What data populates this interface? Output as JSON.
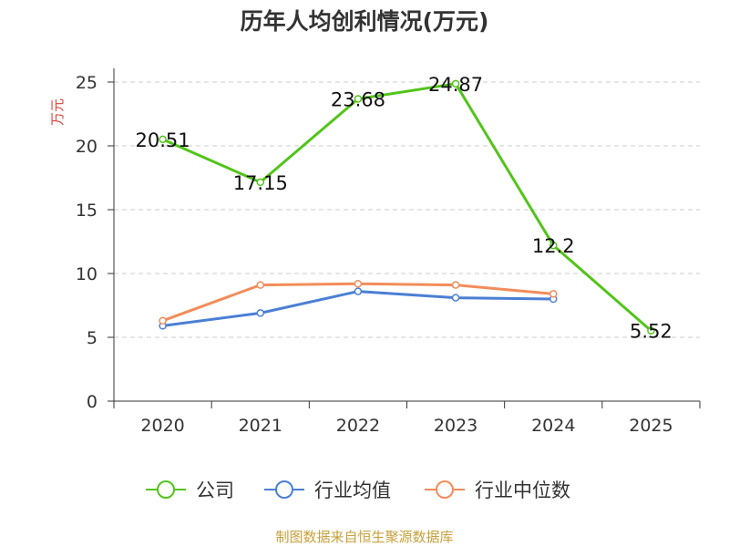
{
  "colors": {
    "company": "#52c41a",
    "industry_avg": "#4a7fd4",
    "industry_median": "#f28c5a",
    "axis": "#333333",
    "grid": "#cccccc",
    "ylabel": "#e0403a",
    "source": "#c8a03c"
  },
  "source_note": "制图数据来自恒生聚源数据库",
  "chart_data": {
    "type": "line",
    "title": "历年人均创利情况(万元)",
    "xlabel": "",
    "ylabel": "万元",
    "categories": [
      "2020",
      "2021",
      "2022",
      "2023",
      "2024",
      "2025"
    ],
    "ylim": [
      0,
      25
    ],
    "yticks": [
      0,
      5,
      10,
      15,
      20,
      25
    ],
    "grid": true,
    "legend_position": "bottom-center",
    "series": [
      {
        "name": "公司",
        "color_key": "company",
        "values": [
          20.51,
          17.15,
          23.68,
          24.87,
          12.2,
          5.52
        ],
        "data_labels": [
          "20.51",
          "17.15",
          "23.68",
          "24.87",
          "12.2",
          "5.52"
        ]
      },
      {
        "name": "行业均值",
        "color_key": "industry_avg",
        "values": [
          5.9,
          6.9,
          8.6,
          8.1,
          8.0,
          null
        ]
      },
      {
        "name": "行业中位数",
        "color_key": "industry_median",
        "values": [
          6.3,
          9.1,
          9.2,
          9.1,
          8.4,
          null
        ]
      }
    ]
  }
}
